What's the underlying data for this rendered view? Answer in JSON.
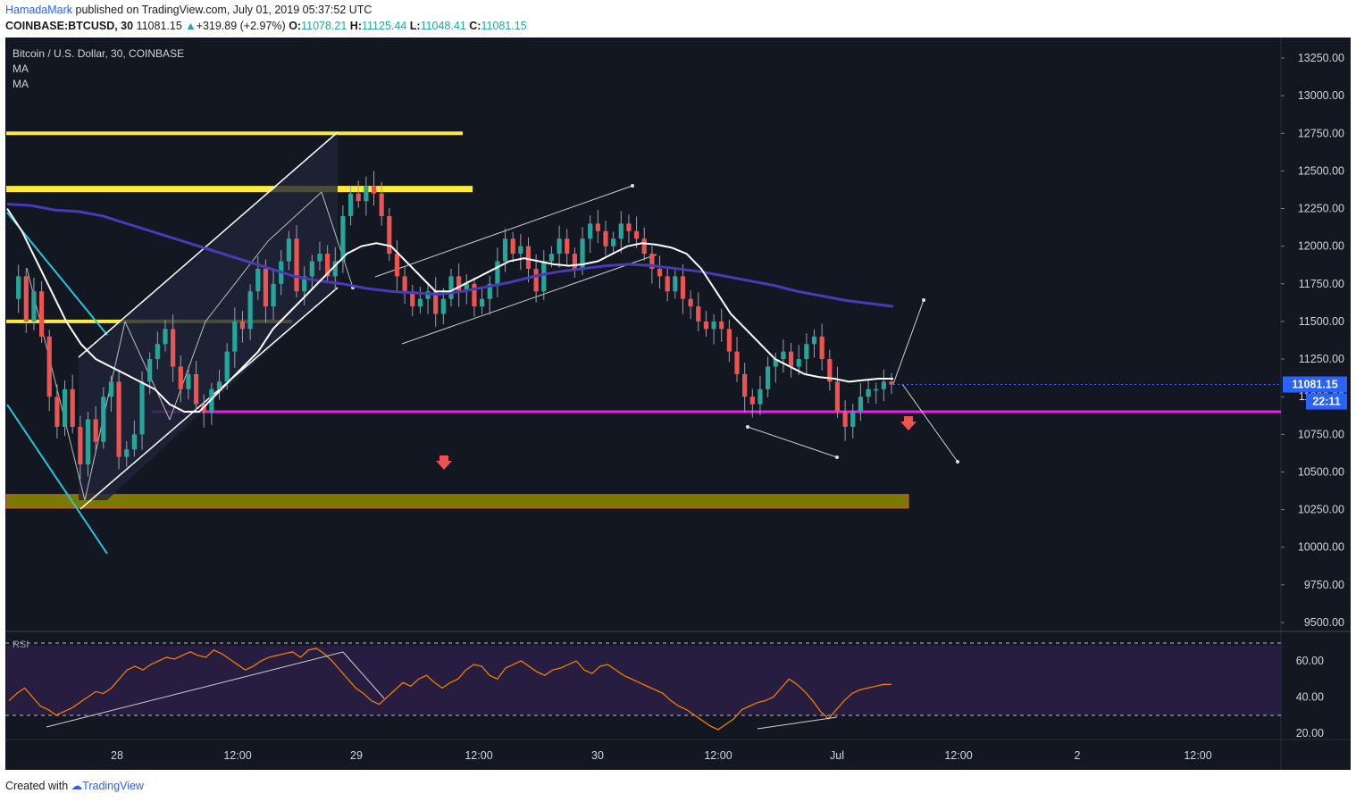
{
  "header": {
    "author": "HamadaMark",
    "published": "published on TradingView.com, July 01, 2019 05:37:52 UTC",
    "symbol": "COINBASE:BTCUSD, 30",
    "last": "11081.15",
    "change": "+319.89 (+2.97%)",
    "o_label": "O:",
    "o": "11078.21",
    "h_label": "H:",
    "h": "11125.44",
    "l_label": "L:",
    "l": "11048.41",
    "c_label": "C:",
    "c": "11081.15"
  },
  "legend": {
    "title": "Bitcoin / U.S. Dollar, 30, COINBASE",
    "ma1": "MA",
    "ma2": "MA",
    "rsi": "RSI"
  },
  "price_tag": "11081.15",
  "countdown_tag": "22:11",
  "footer": {
    "created": "Created with",
    "brand": "TradingView"
  },
  "colors": {
    "background": "#131722",
    "up_candle": "#26a69a",
    "down_candle": "#ef5350",
    "ma_fast": "#ffffff",
    "ma_slow": "#4a3ab5",
    "support_line": "#e91ee9",
    "resistance_zone": "#ffeb3b",
    "demand_zone": "#808000",
    "rsi_line": "#f57c00"
  },
  "chart_data": [
    {
      "type": "candlestick",
      "title": "Bitcoin / U.S. Dollar, 30, COINBASE",
      "x_ticks": [
        "28",
        "12:00",
        "29",
        "12:00",
        "30",
        "12:00",
        "Jul",
        "12:00",
        "2",
        "12:00"
      ],
      "y_ticks": [
        "13250.00",
        "13000.00",
        "12750.00",
        "12500.00",
        "12250.00",
        "12000.00",
        "11750.00",
        "11500.00",
        "11250.00",
        "11000.00",
        "10750.00",
        "10500.00",
        "10250.00",
        "10000.00",
        "9750.00",
        "9500.00"
      ],
      "ylim": [
        9450,
        13400
      ],
      "close_series": [
        11650,
        11800,
        11500,
        11700,
        11400,
        11000,
        10800,
        11050,
        10800,
        10550,
        10850,
        10700,
        11000,
        11100,
        10600,
        10650,
        10750,
        11100,
        11250,
        11350,
        11450,
        11200,
        11050,
        11150,
        10950,
        10900,
        11050,
        11100,
        11300,
        11500,
        11450,
        11700,
        11850,
        11600,
        11750,
        11900,
        12050,
        11700,
        11800,
        11900,
        11950,
        11800,
        11900,
        12200,
        12350,
        12300,
        12400,
        12350,
        12200,
        11950,
        11800,
        11700,
        11600,
        11650,
        11700,
        11550,
        11650,
        11800,
        11700,
        11750,
        11600,
        11650,
        11750,
        11900,
        12050,
        11950,
        12000,
        11850,
        11700,
        11900,
        11950,
        12050,
        11950,
        11850,
        12050,
        12150,
        12100,
        12000,
        12050,
        12150,
        12100,
        12050,
        11950,
        11850,
        11800,
        11700,
        11800,
        11650,
        11600,
        11500,
        11450,
        11500,
        11450,
        11300,
        11150,
        11000,
        10950,
        11050,
        11200,
        11250,
        11300,
        11200,
        11250,
        11350,
        11400,
        11250,
        11100,
        10900,
        10800,
        10900,
        11000,
        11050,
        11050,
        11100,
        11081
      ],
      "ma_fast_series": [
        12250,
        12100,
        11900,
        11700,
        11500,
        11350,
        11250,
        11200,
        11150,
        11100,
        11050,
        10950,
        10900,
        10900,
        11000,
        11100,
        11200,
        11300,
        11450,
        11550,
        11650,
        11750,
        11850,
        11950,
        12000,
        12020,
        12000,
        11900,
        11800,
        11700,
        11700,
        11750,
        11800,
        11850,
        11900,
        11920,
        11900,
        11880,
        11870,
        11880,
        11900,
        11950,
        12000,
        12020,
        12010,
        11990,
        11950,
        11850,
        11700,
        11550,
        11450,
        11350,
        11250,
        11200,
        11150,
        11130,
        11120,
        11100,
        11110,
        11120,
        11120
      ],
      "ma_slow_series": [
        12280,
        12270,
        12240,
        12230,
        12200,
        12150,
        12100,
        12050,
        12000,
        11950,
        11900,
        11850,
        11800,
        11770,
        11750,
        11720,
        11700,
        11690,
        11680,
        11700,
        11730,
        11760,
        11800,
        11830,
        11850,
        11870,
        11880,
        11870,
        11850,
        11830,
        11800,
        11770,
        11740,
        11700,
        11670,
        11640,
        11620,
        11600
      ],
      "lines": [
        {
          "name": "Support",
          "value": 10900
        },
        {
          "name": "Resistance 1",
          "value": 12750
        },
        {
          "name": "Resistance 2",
          "value": 12380
        },
        {
          "name": "Resistance 3",
          "value": 11500
        }
      ],
      "zones": [
        {
          "name": "Demand",
          "from": 10260,
          "to": 10350
        }
      ],
      "last_price": 11081.15
    },
    {
      "type": "line",
      "title": "RSI",
      "y_ticks": [
        "60.00",
        "40.00",
        "20.00"
      ],
      "ylim": [
        16,
        70
      ],
      "bands": [
        30,
        70
      ],
      "values": [
        38,
        42,
        45,
        40,
        35,
        33,
        30,
        32,
        34,
        37,
        40,
        43,
        42,
        45,
        50,
        55,
        57,
        55,
        58,
        60,
        62,
        61,
        63,
        65,
        63,
        62,
        66,
        64,
        61,
        58,
        55,
        57,
        60,
        62,
        63,
        64,
        65,
        62,
        66,
        67,
        64,
        60,
        55,
        50,
        45,
        42,
        38,
        36,
        40,
        44,
        48,
        46,
        50,
        52,
        48,
        45,
        48,
        50,
        55,
        58,
        57,
        52,
        50,
        56,
        58,
        60,
        57,
        54,
        52,
        55,
        56,
        58,
        60,
        55,
        53,
        57,
        58,
        55,
        52,
        50,
        48,
        46,
        44,
        42,
        38,
        35,
        33,
        30,
        27,
        24,
        22,
        25,
        28,
        33,
        35,
        37,
        38,
        40,
        45,
        50,
        47,
        43,
        38,
        32,
        28,
        33,
        38,
        42,
        44,
        45,
        46,
        47,
        47
      ]
    }
  ]
}
